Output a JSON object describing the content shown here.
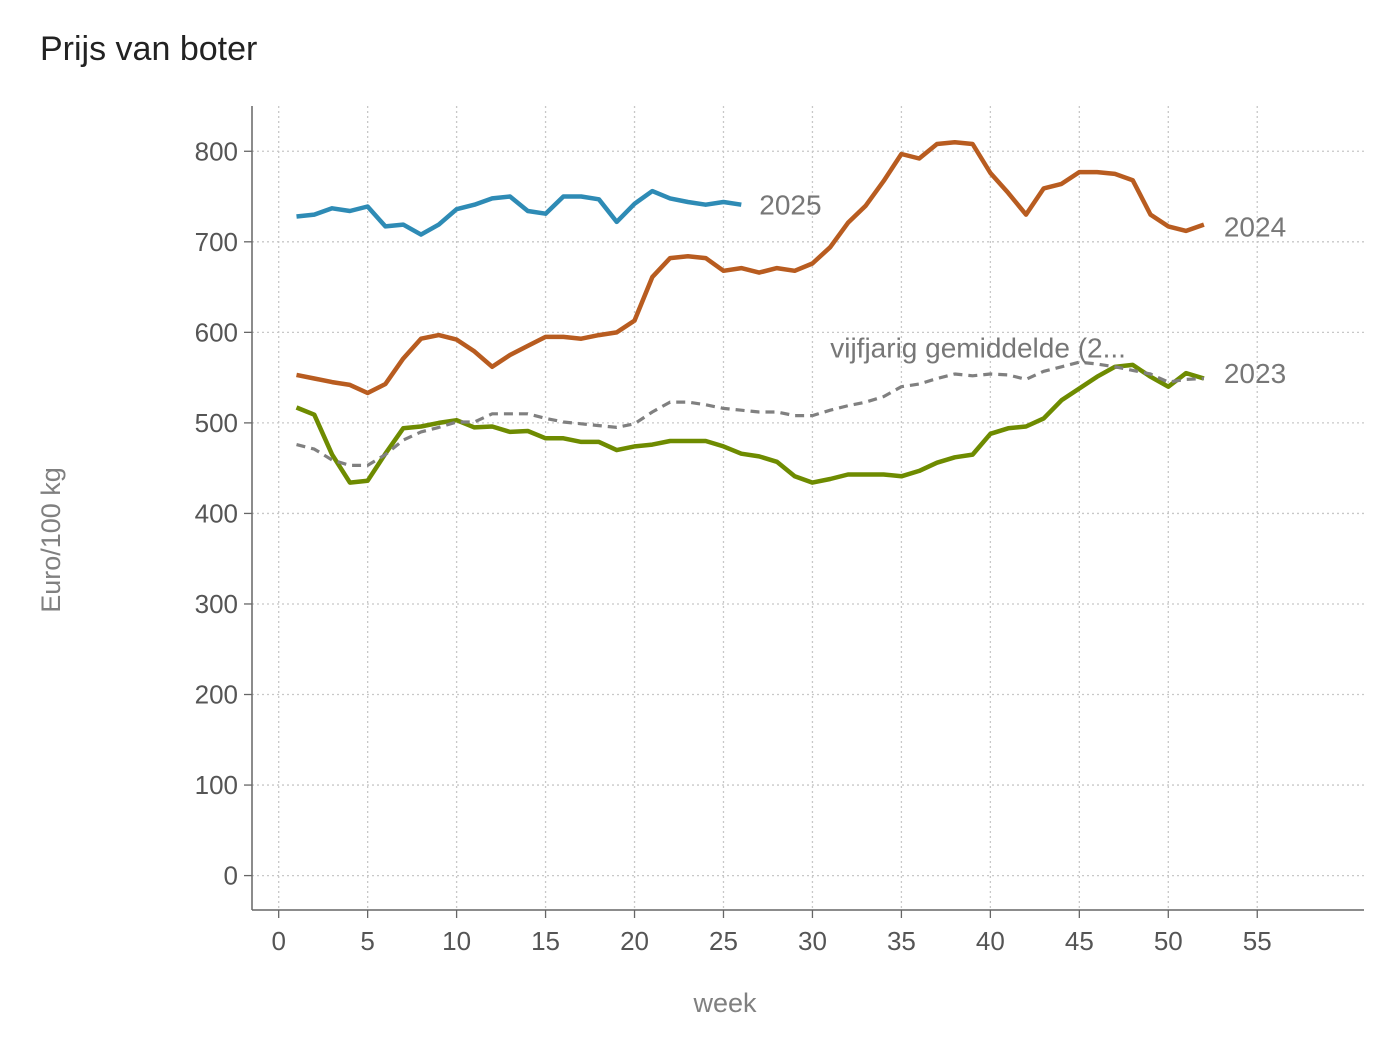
{
  "chart_data": {
    "type": "line",
    "title": "Prijs van boter",
    "xlabel": "week",
    "ylabel": "Euro/100 kg",
    "xlim": [
      -1.5,
      61
    ],
    "ylim": [
      -38,
      850
    ],
    "xticks": [
      0,
      5,
      10,
      15,
      20,
      25,
      30,
      35,
      40,
      45,
      50,
      55
    ],
    "yticks": [
      0,
      100,
      200,
      300,
      400,
      500,
      600,
      700,
      800
    ],
    "grid": true,
    "legend": "inline labels at line ends",
    "series": [
      {
        "name": "2025",
        "color": "#2e8bb5",
        "style": "solid",
        "x": [
          1,
          2,
          3,
          4,
          5,
          6,
          7,
          8,
          9,
          10,
          11,
          12,
          13,
          14,
          15,
          16,
          17,
          18,
          19,
          20,
          21,
          22,
          23,
          24,
          25,
          26
        ],
        "values": [
          728,
          730,
          737,
          734,
          739,
          717,
          719,
          708,
          719,
          736,
          741,
          748,
          750,
          734,
          731,
          750,
          750,
          747,
          722,
          742,
          756,
          748,
          744,
          741,
          744,
          741
        ]
      },
      {
        "name": "2024",
        "color": "#b85c20",
        "style": "solid",
        "x": [
          1,
          2,
          3,
          4,
          5,
          6,
          7,
          8,
          9,
          10,
          11,
          12,
          13,
          14,
          15,
          16,
          17,
          18,
          19,
          20,
          21,
          22,
          23,
          24,
          25,
          26,
          27,
          28,
          29,
          30,
          31,
          32,
          33,
          34,
          35,
          36,
          37,
          38,
          39,
          40,
          41,
          42,
          43,
          44,
          45,
          46,
          47,
          48,
          49,
          50,
          51,
          52
        ],
        "values": [
          553,
          549,
          545,
          542,
          533,
          543,
          571,
          593,
          597,
          592,
          579,
          562,
          575,
          585,
          595,
          595,
          593,
          597,
          600,
          613,
          661,
          682,
          684,
          682,
          668,
          671,
          666,
          671,
          668,
          676,
          694,
          721,
          740,
          767,
          797,
          792,
          808,
          810,
          808,
          776,
          754,
          730,
          759,
          764,
          777,
          777,
          775,
          768,
          730,
          717,
          712,
          719
        ]
      },
      {
        "name": "2023",
        "color": "#6e8b00",
        "style": "solid",
        "x": [
          1,
          2,
          3,
          4,
          5,
          6,
          7,
          8,
          9,
          10,
          11,
          12,
          13,
          14,
          15,
          16,
          17,
          18,
          19,
          20,
          21,
          22,
          23,
          24,
          25,
          26,
          27,
          28,
          29,
          30,
          31,
          32,
          33,
          34,
          35,
          36,
          37,
          38,
          39,
          40,
          41,
          42,
          43,
          44,
          45,
          46,
          47,
          48,
          49,
          50,
          51,
          52
        ],
        "values": [
          517,
          509,
          465,
          434,
          436,
          466,
          494,
          496,
          500,
          503,
          495,
          496,
          490,
          491,
          483,
          483,
          479,
          479,
          470,
          474,
          476,
          480,
          480,
          480,
          474,
          466,
          463,
          457,
          441,
          434,
          438,
          443,
          443,
          443,
          441,
          447,
          456,
          462,
          465,
          488,
          494,
          496,
          505,
          525,
          538,
          551,
          562,
          564,
          551,
          540,
          555,
          549
        ]
      },
      {
        "name": "vijfjarig gemiddelde (2...",
        "color": "#808080",
        "style": "dashed",
        "x": [
          1,
          2,
          3,
          4,
          5,
          6,
          7,
          8,
          9,
          10,
          11,
          12,
          13,
          14,
          15,
          16,
          17,
          18,
          19,
          20,
          21,
          22,
          23,
          24,
          25,
          26,
          27,
          28,
          29,
          30,
          31,
          32,
          33,
          34,
          35,
          36,
          37,
          38,
          39,
          40,
          41,
          42,
          43,
          44,
          45,
          46,
          47,
          48,
          49,
          50,
          51,
          52
        ],
        "values": [
          476,
          471,
          459,
          453,
          453,
          465,
          481,
          490,
          495,
          501,
          501,
          510,
          510,
          510,
          505,
          501,
          499,
          497,
          495,
          499,
          512,
          523,
          523,
          520,
          516,
          514,
          512,
          512,
          508,
          508,
          514,
          519,
          523,
          529,
          540,
          543,
          549,
          554,
          552,
          554,
          553,
          548,
          557,
          562,
          567,
          565,
          562,
          558,
          554,
          545,
          548,
          549
        ]
      }
    ]
  }
}
